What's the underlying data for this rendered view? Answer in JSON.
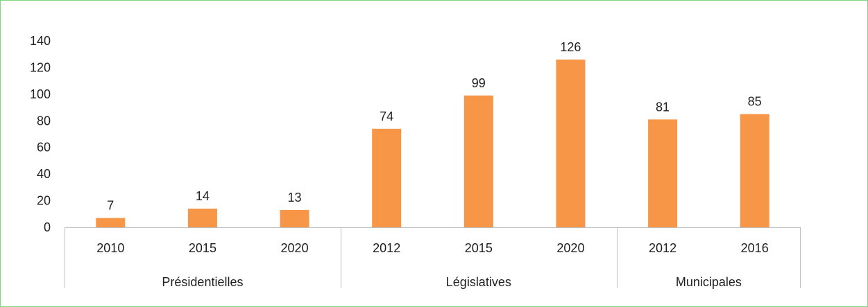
{
  "chart_data": {
    "type": "bar",
    "title": "",
    "xlabel": "",
    "ylabel": "",
    "ylim": [
      0,
      140
    ],
    "yticks": [
      0,
      20,
      40,
      60,
      80,
      100,
      120,
      140
    ],
    "grid": false,
    "bar_color": "#f79646",
    "groups": [
      {
        "name": "Présidentielles",
        "categories": [
          "2010",
          "2015",
          "2020"
        ],
        "values": [
          7,
          14,
          13
        ]
      },
      {
        "name": "Législatives",
        "categories": [
          "2012",
          "2015",
          "2020"
        ],
        "values": [
          74,
          99,
          126
        ]
      },
      {
        "name": "Municipales",
        "categories": [
          "2012",
          "2016"
        ],
        "values": [
          81,
          85
        ]
      }
    ]
  }
}
